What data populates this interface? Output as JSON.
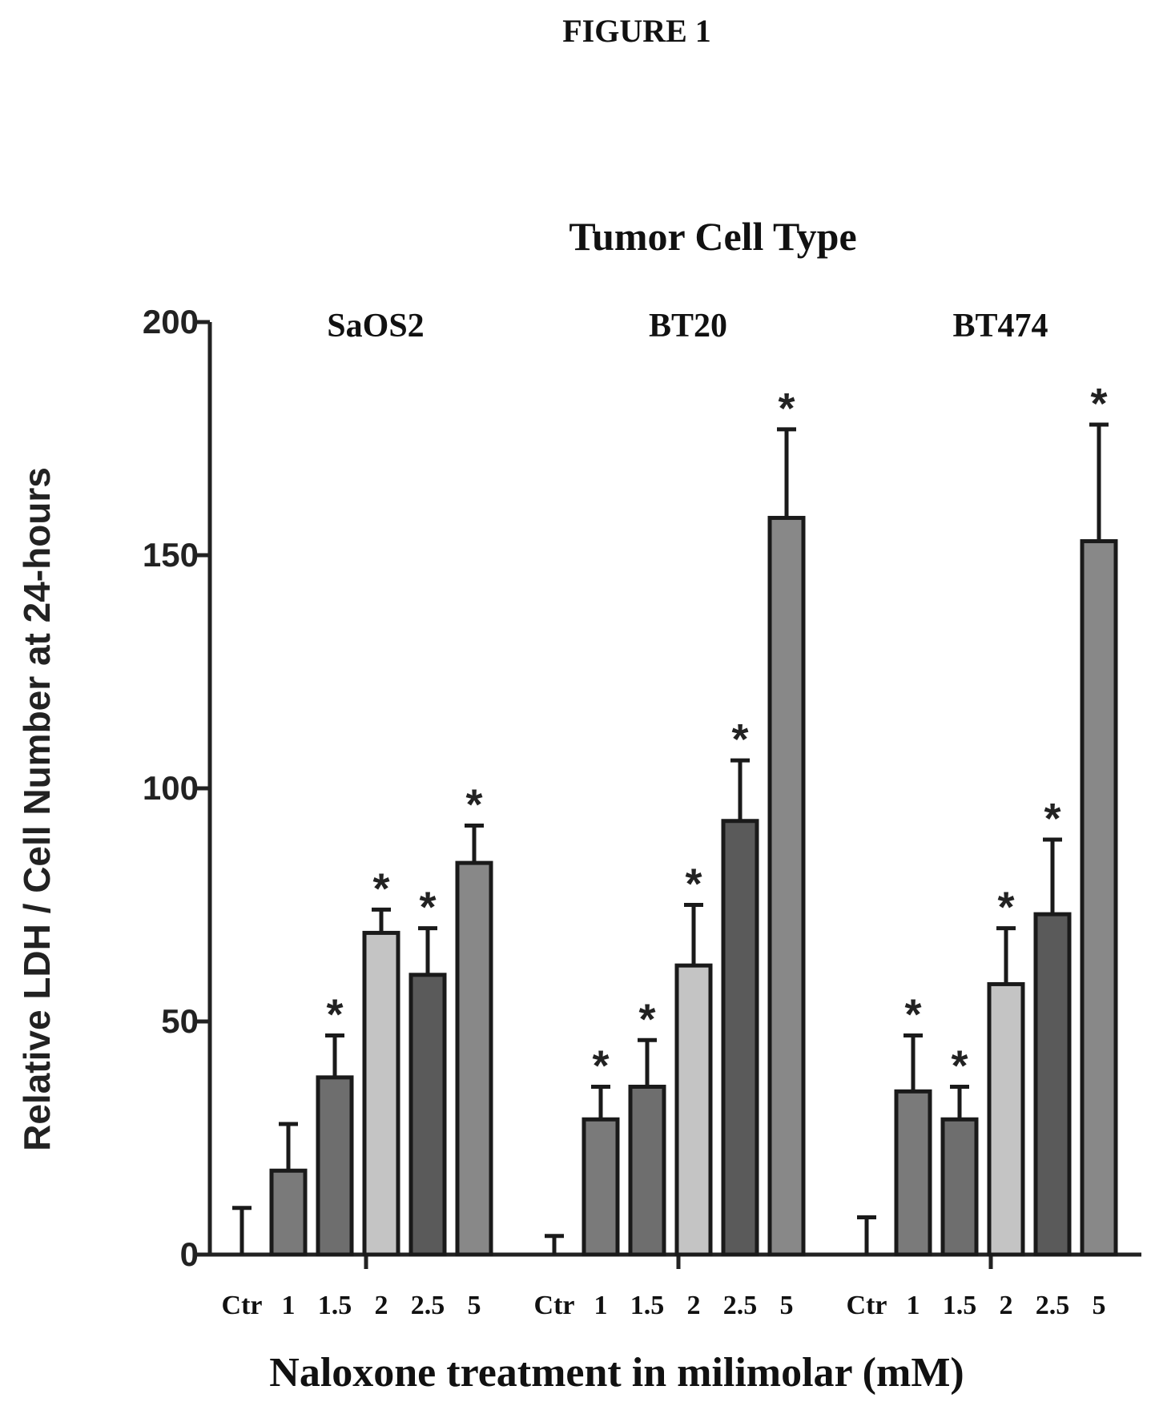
{
  "figure_label": "FIGURE 1",
  "chart_data": {
    "type": "bar",
    "title": "Tumor Cell Type",
    "xlabel": "Naloxone treatment in milimolar (mM)",
    "ylabel": "Relative LDH / Cell Number at 24-hours",
    "ylim": [
      0,
      200
    ],
    "yticks": [
      0,
      50,
      100,
      150,
      200
    ],
    "grid": false,
    "significance_marker": "*",
    "bar_colors": [
      "#ffffff",
      "#7a7a7a",
      "#6e6e6e",
      "#c4c4c4",
      "#5a5a5a",
      "#888888"
    ],
    "groups": [
      {
        "name": "SaOS2",
        "categories": [
          "Ctr",
          "1",
          "1.5",
          "2",
          "2.5",
          "5"
        ],
        "values": [
          0,
          18,
          38,
          69,
          60,
          84
        ],
        "errors": [
          10,
          10,
          9,
          5,
          10,
          8
        ],
        "significant": [
          false,
          false,
          true,
          true,
          true,
          true
        ]
      },
      {
        "name": "BT20",
        "categories": [
          "Ctr",
          "1",
          "1.5",
          "2",
          "2.5",
          "5"
        ],
        "values": [
          0,
          29,
          36,
          62,
          93,
          158
        ],
        "errors": [
          4,
          7,
          10,
          13,
          13,
          19
        ],
        "significant": [
          false,
          true,
          true,
          true,
          true,
          true
        ]
      },
      {
        "name": "BT474",
        "categories": [
          "Ctr",
          "1",
          "1.5",
          "2",
          "2.5",
          "5"
        ],
        "values": [
          0,
          35,
          29,
          58,
          73,
          153
        ],
        "errors": [
          8,
          12,
          7,
          12,
          16,
          25
        ],
        "significant": [
          false,
          true,
          true,
          true,
          true,
          true
        ]
      }
    ]
  }
}
